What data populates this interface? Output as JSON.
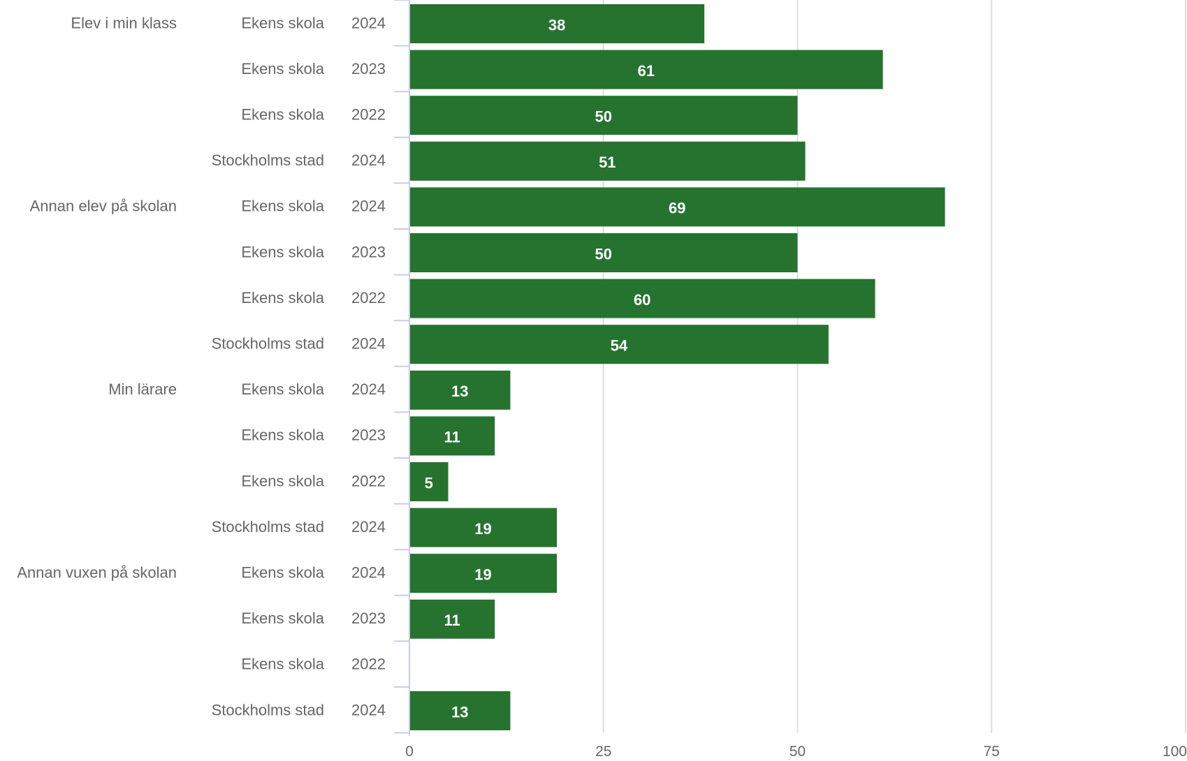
{
  "chart_data": {
    "type": "bar",
    "orientation": "horizontal",
    "xlim": [
      0,
      100
    ],
    "xticks": [
      0,
      25,
      50,
      75,
      100
    ],
    "grid": true,
    "bar_color": "#267330",
    "rows": [
      {
        "category": "Elev i min klass",
        "school": "Ekens skola",
        "year": "2024",
        "value": 38
      },
      {
        "category": "",
        "school": "Ekens skola",
        "year": "2023",
        "value": 61
      },
      {
        "category": "",
        "school": "Ekens skola",
        "year": "2022",
        "value": 50
      },
      {
        "category": "",
        "school": "Stockholms stad",
        "year": "2024",
        "value": 51
      },
      {
        "category": "Annan elev på skolan",
        "school": "Ekens skola",
        "year": "2024",
        "value": 69
      },
      {
        "category": "",
        "school": "Ekens skola",
        "year": "2023",
        "value": 50
      },
      {
        "category": "",
        "school": "Ekens skola",
        "year": "2022",
        "value": 60
      },
      {
        "category": "",
        "school": "Stockholms stad",
        "year": "2024",
        "value": 54
      },
      {
        "category": "Min lärare",
        "school": "Ekens skola",
        "year": "2024",
        "value": 13
      },
      {
        "category": "",
        "school": "Ekens skola",
        "year": "2023",
        "value": 11
      },
      {
        "category": "",
        "school": "Ekens skola",
        "year": "2022",
        "value": 5
      },
      {
        "category": "",
        "school": "Stockholms stad",
        "year": "2024",
        "value": 19
      },
      {
        "category": "Annan vuxen på skolan",
        "school": "Ekens skola",
        "year": "2024",
        "value": 19
      },
      {
        "category": "",
        "school": "Ekens skola",
        "year": "2023",
        "value": 11
      },
      {
        "category": "",
        "school": "Ekens skola",
        "year": "2022",
        "value": null
      },
      {
        "category": "",
        "school": "Stockholms stad",
        "year": "2024",
        "value": 13
      }
    ]
  }
}
